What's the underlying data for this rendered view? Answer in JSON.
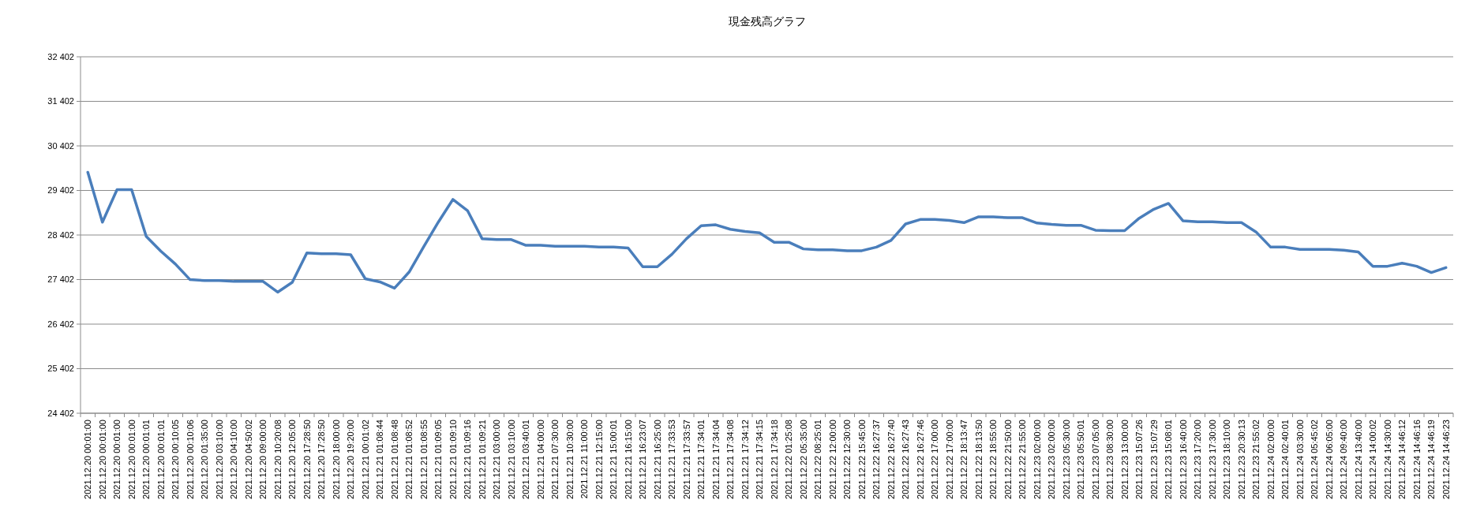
{
  "chart_data": {
    "type": "line",
    "title": "現金残高グラフ",
    "categories": [
      "2021.12.20 00:01:00",
      "2021.12.20 00:01:00",
      "2021.12.20 00:01:00",
      "2021.12.20 00:01:00",
      "2021.12.20 00:01:01",
      "2021.12.20 00:01:01",
      "2021.12.20 00:10:05",
      "2021.12.20 00:10:06",
      "2021.12.20 01:35:00",
      "2021.12.20 03:10:00",
      "2021.12.20 04:10:00",
      "2021.12.20 04:50:02",
      "2021.12.20 09:00:00",
      "2021.12.20 10:20:08",
      "2021.12.20 12:05:00",
      "2021.12.20 17:28:50",
      "2021.12.20 17:28:50",
      "2021.12.20 18:00:00",
      "2021.12.20 19:20:00",
      "2021.12.21 00:01:02",
      "2021.12.21 01:08:44",
      "2021.12.21 01:08:48",
      "2021.12.21 01:08:52",
      "2021.12.21 01:08:55",
      "2021.12.21 01:09:05",
      "2021.12.21 01:09:10",
      "2021.12.21 01:09:16",
      "2021.12.21 01:09:21",
      "2021.12.21 03:00:00",
      "2021.12.21 03:10:00",
      "2021.12.21 03:40:01",
      "2021.12.21 04:00:00",
      "2021.12.21 07:30:00",
      "2021.12.21 10:30:00",
      "2021.12.21 11:00:00",
      "2021.12.21 12:15:00",
      "2021.12.21 15:00:01",
      "2021.12.21 16:15:00",
      "2021.12.21 16:23:07",
      "2021.12.21 16:25:00",
      "2021.12.21 17:33:53",
      "2021.12.21 17:33:57",
      "2021.12.21 17:34:01",
      "2021.12.21 17:34:04",
      "2021.12.21 17:34:08",
      "2021.12.21 17:34:12",
      "2021.12.21 17:34:15",
      "2021.12.21 17:34:18",
      "2021.12.22 01:25:08",
      "2021.12.22 05:35:00",
      "2021.12.22 08:25:01",
      "2021.12.22 12:00:00",
      "2021.12.22 12:30:00",
      "2021.12.22 15:45:00",
      "2021.12.22 16:27:37",
      "2021.12.22 16:27:40",
      "2021.12.22 16:27:43",
      "2021.12.22 16:27:46",
      "2021.12.22 17:00:00",
      "2021.12.22 17:00:00",
      "2021.12.22 18:13:47",
      "2021.12.22 18:13:50",
      "2021.12.22 18:55:00",
      "2021.12.22 21:50:00",
      "2021.12.22 21:55:00",
      "2021.12.23 02:00:00",
      "2021.12.23 02:00:00",
      "2021.12.23 05:30:00",
      "2021.12.23 05:50:01",
      "2021.12.23 07:05:00",
      "2021.12.23 08:30:00",
      "2021.12.23 13:00:00",
      "2021.12.23 15:07:26",
      "2021.12.23 15:07:29",
      "2021.12.23 15:08:01",
      "2021.12.23 16:40:00",
      "2021.12.23 17:20:00",
      "2021.12.23 17:30:00",
      "2021.12.23 18:10:00",
      "2021.12.23 20:30:13",
      "2021.12.23 21:55:02",
      "2021.12.24 02:00:00",
      "2021.12.24 02:40:01",
      "2021.12.24 03:30:00",
      "2021.12.24 05:45:02",
      "2021.12.24 06:05:00",
      "2021.12.24 09:40:00",
      "2021.12.24 13:40:00",
      "2021.12.24 14:00:02",
      "2021.12.24 14:30:00",
      "2021.12.24 14:46:12",
      "2021.12.24 14:46:16",
      "2021.12.24 14:46:19",
      "2021.12.24 14:46:23"
    ],
    "series": [
      {
        "color": "#4a7ebb",
        "values": [
          29810,
          28690,
          29420,
          29420,
          28370,
          28040,
          27750,
          27400,
          27380,
          27380,
          27360,
          27360,
          27360,
          27120,
          27340,
          28000,
          27980,
          27980,
          27960,
          27420,
          27350,
          27210,
          27570,
          28140,
          28690,
          29200,
          28950,
          28320,
          28300,
          28300,
          28170,
          28170,
          28150,
          28150,
          28150,
          28130,
          28130,
          28110,
          27690,
          27690,
          27970,
          28320,
          28610,
          28630,
          28530,
          28480,
          28450,
          28240,
          28240,
          28090,
          28070,
          28070,
          28050,
          28050,
          28130,
          28280,
          28650,
          28750,
          28750,
          28730,
          28680,
          28810,
          28810,
          28790,
          28790,
          28670,
          28640,
          28620,
          28620,
          28510,
          28500,
          28500,
          28780,
          28980,
          29110,
          28720,
          28700,
          28700,
          28680,
          28680,
          28470,
          28130,
          28130,
          28080,
          28080,
          28080,
          28060,
          28020,
          27700,
          27700,
          27770,
          27700,
          27560,
          27670
        ]
      }
    ],
    "ylim": [
      24402,
      32402
    ],
    "yticks": [
      {
        "value": 24402,
        "label": "24 402"
      },
      {
        "value": 25402,
        "label": "25 402"
      },
      {
        "value": 26402,
        "label": "26 402"
      },
      {
        "value": 27402,
        "label": "27 402"
      },
      {
        "value": 28402,
        "label": "28 402"
      },
      {
        "value": 29402,
        "label": "29 402"
      },
      {
        "value": 30402,
        "label": "30 402"
      },
      {
        "value": 31402,
        "label": "31 402"
      },
      {
        "value": 32402,
        "label": "32 402"
      }
    ],
    "grid": "y",
    "marker": "none",
    "line_style": "solid"
  }
}
